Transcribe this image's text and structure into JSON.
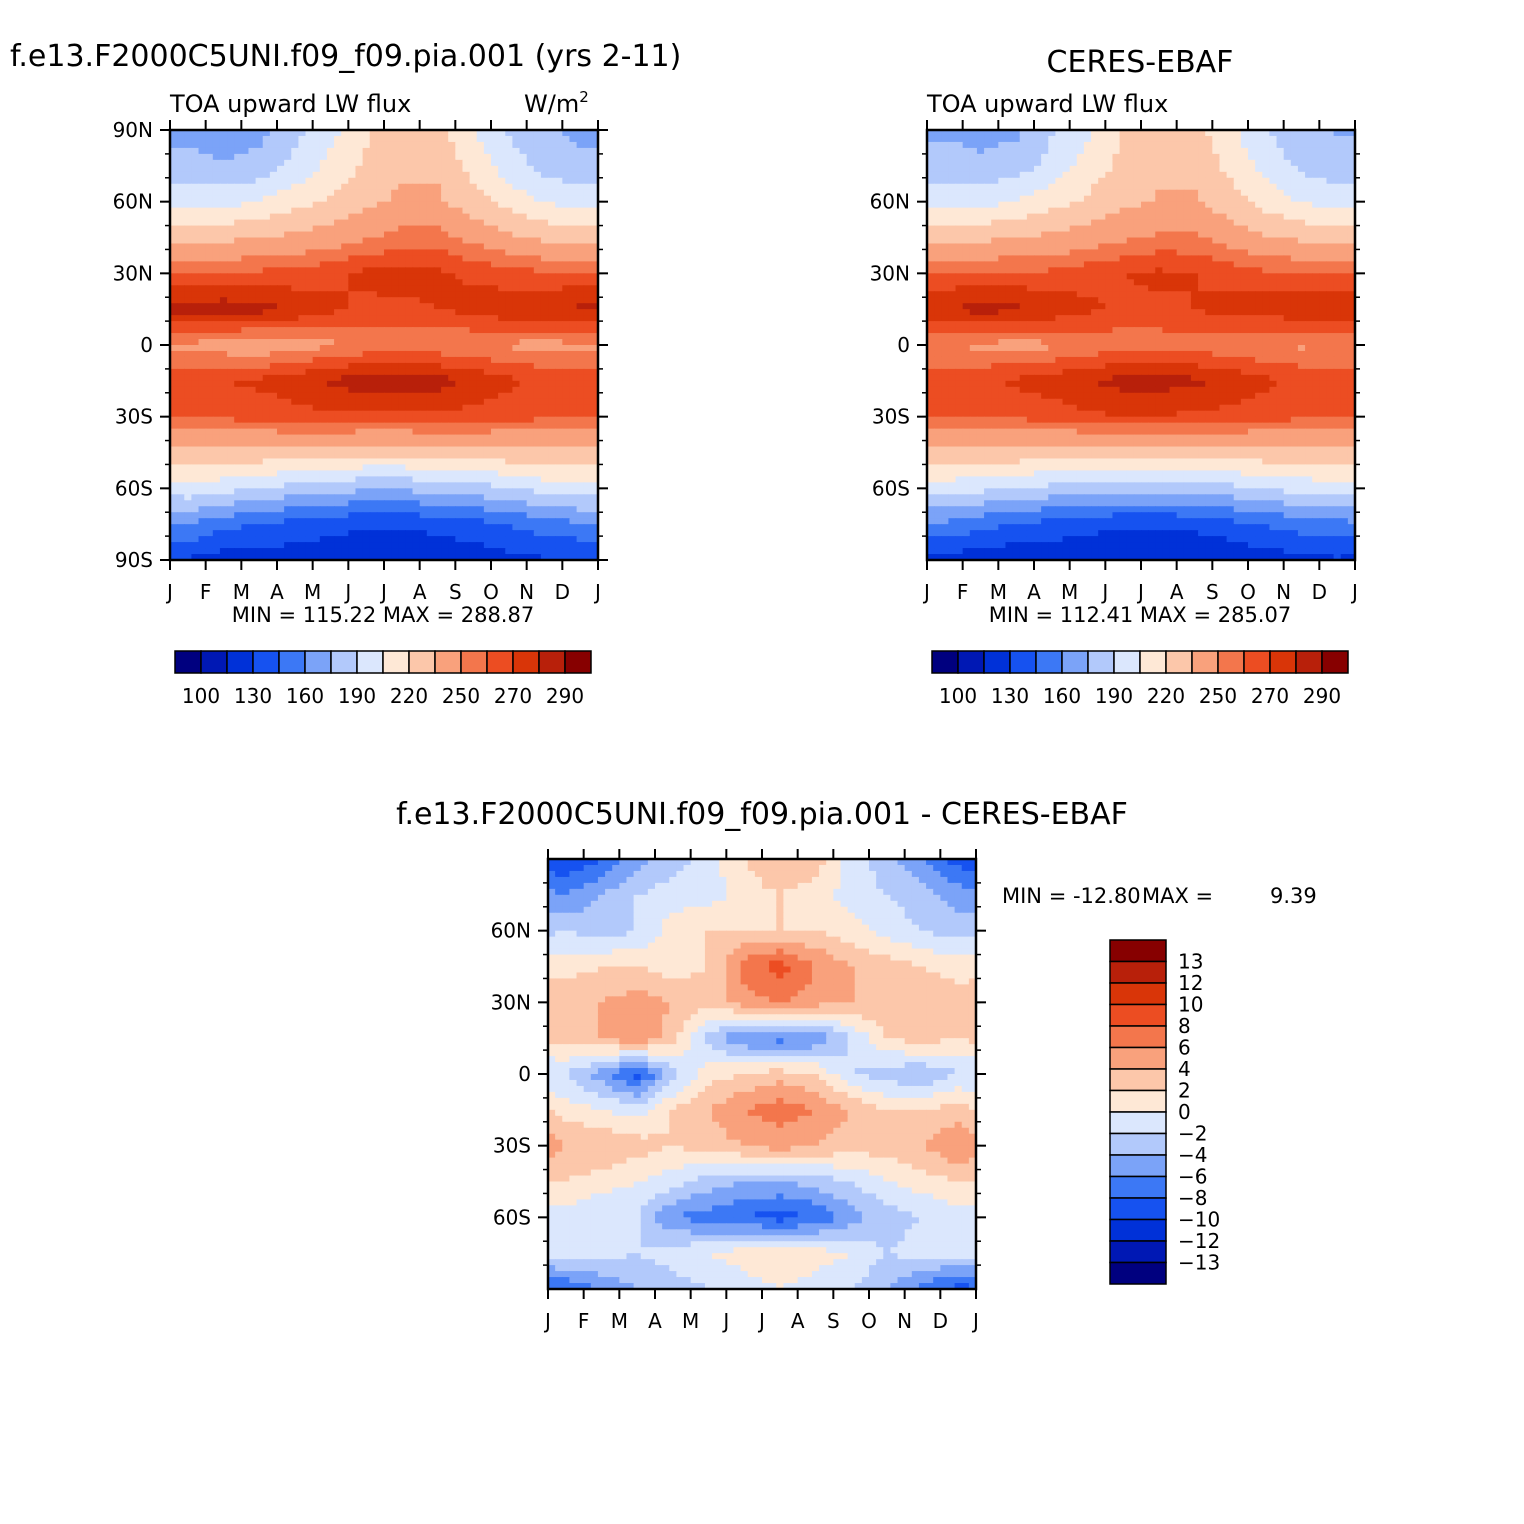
{
  "chart_data": [
    {
      "type": "heatmap",
      "title": "f.e13.F2000C5UNI.f09_f09.pia.001 (yrs 2-11)",
      "subtitle_left": "TOA upward LW flux",
      "subtitle_right": "W/m",
      "subtitle_right_sup": "2",
      "x_ticks": [
        "J",
        "F",
        "M",
        "A",
        "M",
        "J",
        "J",
        "A",
        "S",
        "O",
        "N",
        "D",
        "J"
      ],
      "y_ticks": [
        "90N",
        "60N",
        "30N",
        "0",
        "30S",
        "60S",
        "90S"
      ],
      "y_tick_values": [
        90,
        60,
        30,
        0,
        -30,
        -60,
        -90
      ],
      "stats": "MIN = 115.22 MAX = 288.87",
      "colorbar": {
        "orientation": "horizontal",
        "labels": [
          "100",
          "130",
          "160",
          "190",
          "220",
          "250",
          "270",
          "290"
        ],
        "colors": [
          "#00007f",
          "#0018b4",
          "#0031d8",
          "#1652f0",
          "#3c78f5",
          "#7ba3f8",
          "#b2c9fb",
          "#dbe7fd",
          "#fee8d6",
          "#fcc7aa",
          "#f9a17c",
          "#f3764c",
          "#ec4d22",
          "#d93508",
          "#b8200a",
          "#870000"
        ]
      },
      "x": [
        0.5,
        1.5,
        2.5,
        3.5,
        4.5,
        5.5,
        6.5,
        7.5,
        8.5,
        9.5,
        10.5,
        11.5
      ],
      "y": [
        -90,
        -75,
        -60,
        -45,
        -30,
        -15,
        0,
        15,
        30,
        45,
        60,
        75,
        90
      ],
      "z": [
        [
          128,
          122,
          122,
          122,
          118,
          116,
          116,
          118,
          120,
          126,
          128,
          128
        ],
        [
          160,
          150,
          145,
          140,
          136,
          132,
          132,
          135,
          140,
          146,
          152,
          158
        ],
        [
          200,
          195,
          190,
          185,
          180,
          178,
          178,
          180,
          184,
          190,
          196,
          200
        ],
        [
          232,
          232,
          230,
          228,
          226,
          224,
          224,
          226,
          228,
          230,
          232,
          232
        ],
        [
          262,
          262,
          264,
          266,
          268,
          268,
          268,
          268,
          266,
          264,
          262,
          262
        ],
        [
          268,
          270,
          272,
          276,
          282,
          286,
          287,
          284,
          278,
          272,
          268,
          268
        ],
        [
          248,
          244,
          240,
          246,
          248,
          252,
          254,
          252,
          250,
          248,
          246,
          248
        ],
        [
          284,
          286,
          284,
          278,
          272,
          268,
          268,
          270,
          274,
          278,
          280,
          282
        ],
        [
          262,
          262,
          262,
          264,
          268,
          272,
          274,
          272,
          268,
          264,
          262,
          262
        ],
        [
          232,
          232,
          234,
          238,
          242,
          248,
          254,
          254,
          246,
          238,
          232,
          230
        ],
        [
          200,
          200,
          206,
          214,
          222,
          232,
          238,
          238,
          226,
          214,
          204,
          200
        ],
        [
          180,
          176,
          180,
          194,
          210,
          222,
          232,
          232,
          214,
          198,
          184,
          178
        ],
        [
          170,
          168,
          170,
          186,
          200,
          218,
          228,
          226,
          206,
          188,
          176,
          172
        ]
      ]
    },
    {
      "type": "heatmap",
      "title": "CERES-EBAF",
      "subtitle_left": "TOA upward LW flux",
      "x_ticks": [
        "J",
        "F",
        "M",
        "A",
        "M",
        "J",
        "J",
        "A",
        "S",
        "O",
        "N",
        "D",
        "J"
      ],
      "y_ticks": [
        "60N",
        "30N",
        "0",
        "30S",
        "60S"
      ],
      "y_tick_values": [
        60,
        30,
        0,
        -30,
        -60
      ],
      "stats": "MIN = 112.41 MAX = 285.07",
      "colorbar": {
        "orientation": "horizontal",
        "labels": [
          "100",
          "130",
          "160",
          "190",
          "220",
          "250",
          "270",
          "290"
        ],
        "colors": [
          "#00007f",
          "#0018b4",
          "#0031d8",
          "#1652f0",
          "#3c78f5",
          "#7ba3f8",
          "#b2c9fb",
          "#dbe7fd",
          "#fee8d6",
          "#fcc7aa",
          "#f9a17c",
          "#f3764c",
          "#ec4d22",
          "#d93508",
          "#b8200a",
          "#870000"
        ]
      },
      "x": [
        0.5,
        1.5,
        2.5,
        3.5,
        4.5,
        5.5,
        6.5,
        7.5,
        8.5,
        9.5,
        10.5,
        11.5
      ],
      "y": [
        -90,
        -75,
        -60,
        -45,
        -30,
        -15,
        0,
        15,
        30,
        45,
        60,
        75,
        90
      ],
      "z": [
        [
          125,
          120,
          118,
          118,
          116,
          114,
          114,
          116,
          118,
          122,
          126,
          128
        ],
        [
          158,
          150,
          144,
          140,
          136,
          132,
          132,
          134,
          140,
          146,
          152,
          156
        ],
        [
          198,
          194,
          190,
          186,
          182,
          180,
          180,
          182,
          186,
          192,
          196,
          198
        ],
        [
          230,
          230,
          230,
          228,
          226,
          224,
          224,
          226,
          228,
          230,
          230,
          230
        ],
        [
          262,
          262,
          262,
          264,
          268,
          270,
          270,
          268,
          266,
          264,
          262,
          262
        ],
        [
          266,
          268,
          272,
          276,
          280,
          284,
          284,
          282,
          278,
          272,
          268,
          266
        ],
        [
          250,
          248,
          246,
          248,
          252,
          254,
          254,
          254,
          252,
          250,
          248,
          250
        ],
        [
          280,
          284,
          282,
          278,
          272,
          268,
          268,
          270,
          274,
          276,
          278,
          280
        ],
        [
          262,
          262,
          262,
          262,
          266,
          270,
          272,
          270,
          266,
          262,
          262,
          262
        ],
        [
          232,
          232,
          234,
          238,
          242,
          248,
          252,
          252,
          244,
          236,
          232,
          230
        ],
        [
          200,
          200,
          206,
          214,
          222,
          232,
          236,
          236,
          226,
          214,
          204,
          200
        ],
        [
          182,
          178,
          182,
          196,
          212,
          224,
          232,
          232,
          216,
          200,
          186,
          180
        ],
        [
          172,
          170,
          172,
          188,
          202,
          220,
          228,
          226,
          208,
          190,
          178,
          174
        ]
      ]
    },
    {
      "type": "heatmap",
      "title": "f.e13.F2000C5UNI.f09_f09.pia.001 - CERES-EBAF",
      "x_ticks": [
        "J",
        "F",
        "M",
        "A",
        "M",
        "J",
        "J",
        "A",
        "S",
        "O",
        "N",
        "D",
        "J"
      ],
      "y_ticks": [
        "60N",
        "30N",
        "0",
        "30S",
        "60S"
      ],
      "y_tick_values": [
        60,
        30,
        0,
        -30,
        -60
      ],
      "stats_min": "MIN = -12.80",
      "stats_max": "MAX =",
      "stats_max_value": "9.39",
      "colorbar": {
        "orientation": "vertical",
        "labels": [
          "13",
          "12",
          "10",
          "8",
          "6",
          "4",
          "2",
          "0",
          "-2",
          "-4",
          "-6",
          "-8",
          "-10",
          "-12",
          "-13"
        ],
        "levels": [
          -14,
          -13,
          -12,
          -10,
          -8,
          -6,
          -4,
          -2,
          0,
          2,
          4,
          6,
          8,
          10,
          12,
          13,
          14
        ],
        "colors": [
          "#00007f",
          "#0018b4",
          "#0031d8",
          "#1652f0",
          "#3c78f5",
          "#7ba3f8",
          "#b2c9fb",
          "#dbe7fd",
          "#fee8d6",
          "#fcc7aa",
          "#f9a17c",
          "#f3764c",
          "#ec4d22",
          "#d93508",
          "#b8200a",
          "#870000"
        ]
      },
      "x": [
        0.5,
        1.5,
        2.5,
        3.5,
        4.5,
        5.5,
        6.5,
        7.5,
        8.5,
        9.5,
        10.5,
        11.5
      ],
      "y": [
        -90,
        -75,
        -60,
        -45,
        -30,
        -15,
        0,
        15,
        30,
        45,
        60,
        75,
        90
      ],
      "z": [
        [
          -8,
          -6,
          -4,
          -3,
          -2,
          -1,
          0,
          -1,
          -2,
          -4,
          -7,
          -9
        ],
        [
          -1,
          -1,
          -2,
          -1,
          0,
          1,
          2,
          1,
          0,
          -2,
          -1,
          -1
        ],
        [
          -1,
          -2,
          -2,
          -6,
          -7,
          -8,
          -9,
          -8,
          -5,
          -3,
          -2,
          -1
        ],
        [
          2,
          1,
          0,
          -1,
          -3,
          -4,
          -4,
          -3,
          -2,
          0,
          1,
          2
        ],
        [
          4,
          4,
          3,
          2,
          3,
          4,
          5,
          4,
          3,
          3,
          4,
          6
        ],
        [
          1,
          0,
          -1,
          2,
          4,
          6,
          7,
          6,
          4,
          2,
          2,
          3
        ],
        [
          -2,
          -5,
          -9,
          -3,
          1,
          2,
          3,
          2,
          -2,
          -3,
          -4,
          -2
        ],
        [
          3,
          4,
          6,
          3,
          -3,
          -6,
          -7,
          -6,
          -2,
          2,
          3,
          2
        ],
        [
          4,
          4,
          5,
          4,
          3,
          5,
          6,
          5,
          4,
          4,
          4,
          3
        ],
        [
          1,
          2,
          2,
          1,
          2,
          7,
          9,
          6,
          4,
          3,
          2,
          1
        ],
        [
          -2,
          -3,
          -2,
          1,
          2,
          2,
          2,
          2,
          1,
          -1,
          -2,
          -3
        ],
        [
          -6,
          -4,
          -2,
          -1,
          -1,
          1,
          2,
          1,
          -1,
          -2,
          -3,
          -5
        ],
        [
          -10,
          -8,
          -5,
          -3,
          -1,
          2,
          4,
          3,
          -1,
          -3,
          -6,
          -9
        ]
      ]
    }
  ]
}
